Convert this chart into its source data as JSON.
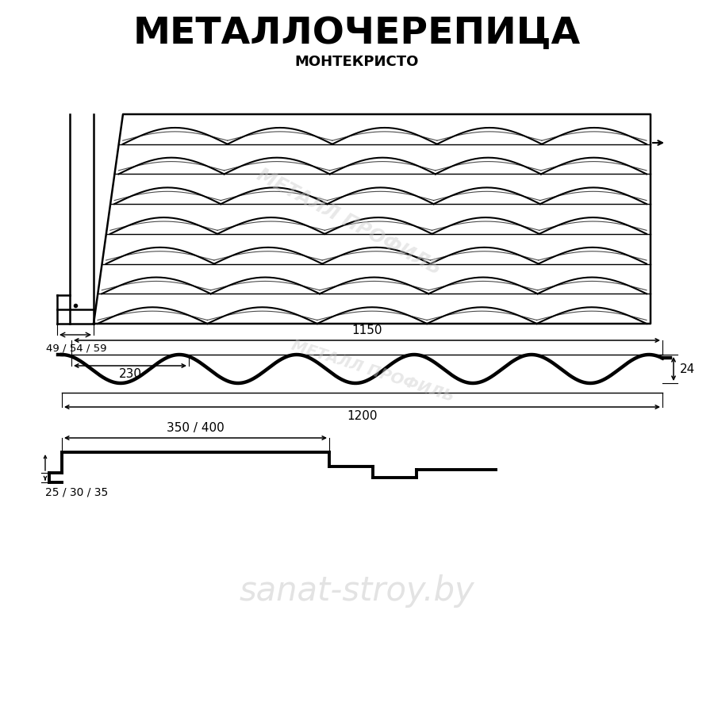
{
  "title_main": "МЕТАЛЛОЧЕРЕПИЦА",
  "title_sub": "МОНТЕКРИСТО",
  "bg_color": "#ffffff",
  "line_color": "#000000",
  "watermark_color": "#cccccc",
  "watermark_sanat": "sanat-stroy.by",
  "watermark_mp": "МЕТАЛЛ ПРОФИЛЬ",
  "dim_1150": "1150",
  "dim_230": "230",
  "dim_24": "24",
  "dim_1200": "1200",
  "dim_350_400": "350 / 400",
  "dim_25_30_35": "25 / 30 / 35",
  "dim_49_54_59": "49 / 54 / 59"
}
